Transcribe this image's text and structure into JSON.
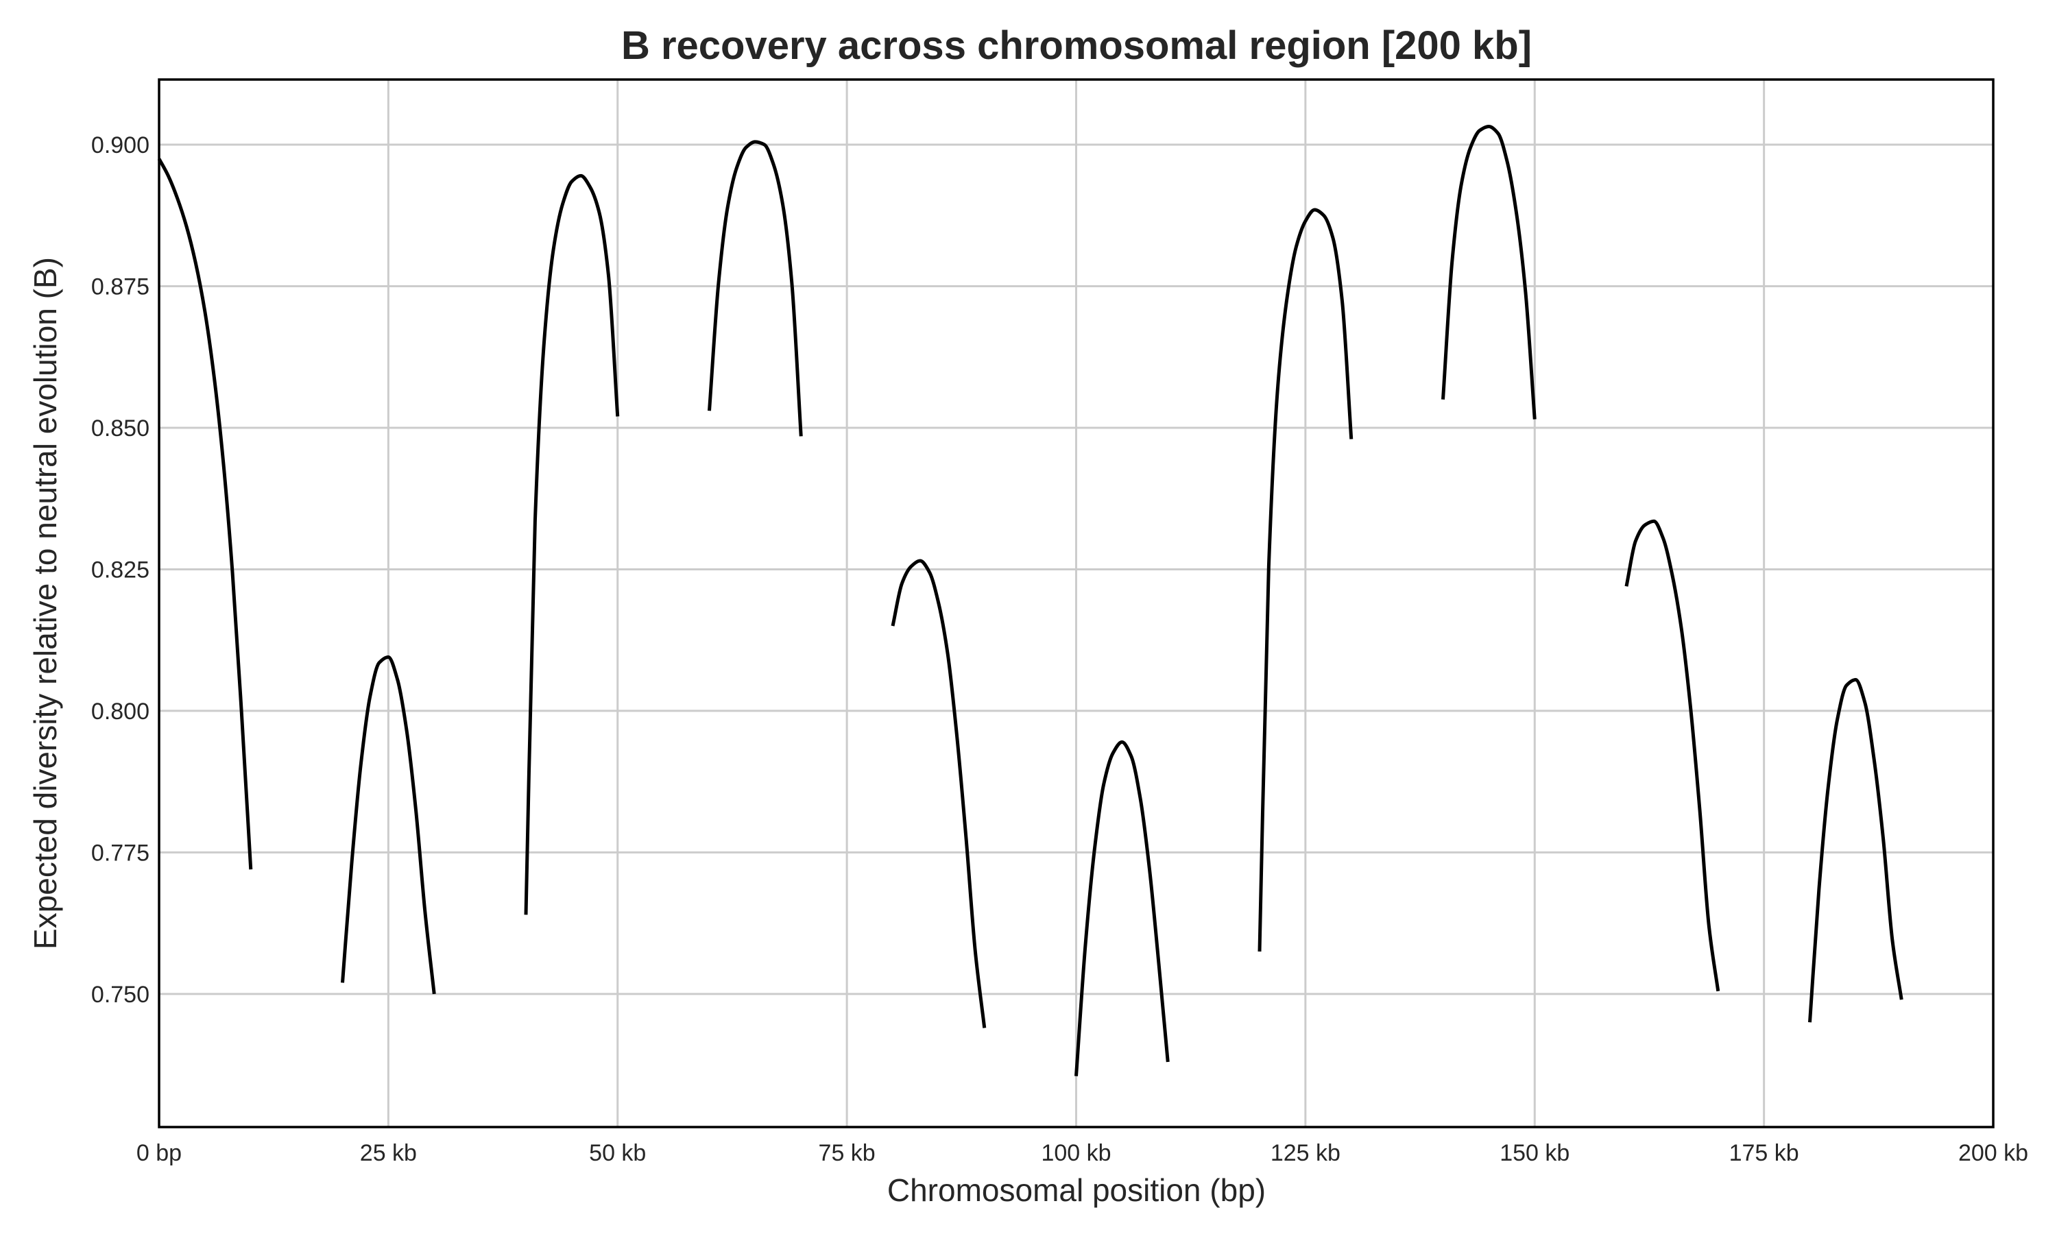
{
  "chart_data": {
    "type": "line",
    "title": "B recovery across chromosomal region [200 kb]",
    "xlabel": "Chromosomal position (bp)",
    "ylabel": "Expected diversity relative to neutral evolution (B)",
    "xlim": [
      0,
      200000
    ],
    "ylim": [
      0.7265,
      0.9115
    ],
    "grid": true,
    "x_ticks": [
      0,
      25000,
      50000,
      75000,
      100000,
      125000,
      150000,
      175000,
      200000
    ],
    "x_tick_labels": [
      "0 bp",
      "25 kb",
      "50 kb",
      "75 kb",
      "100 kb",
      "125 kb",
      "150 kb",
      "175 kb",
      "200 kb"
    ],
    "y_ticks": [
      0.75,
      0.775,
      0.8,
      0.825,
      0.85,
      0.875,
      0.9
    ],
    "y_tick_labels": [
      "0.750",
      "0.775",
      "0.800",
      "0.825",
      "0.850",
      "0.875",
      "0.900"
    ],
    "line_color": "#000000",
    "segments": [
      {
        "x": [
          0,
          1000,
          2000,
          3000,
          4000,
          5000,
          6000,
          7000,
          8000,
          9000,
          10000
        ],
        "y": [
          0.8975,
          0.8945,
          0.8905,
          0.8855,
          0.879,
          0.8705,
          0.859,
          0.844,
          0.8245,
          0.7995,
          0.772
        ]
      },
      {
        "x": [
          20000,
          21000,
          22000,
          23000,
          24000,
          25000,
          26000,
          27000,
          28000,
          29000,
          30000
        ],
        "y": [
          0.752,
          0.773,
          0.7905,
          0.8025,
          0.8085,
          0.8095,
          0.8055,
          0.7965,
          0.7825,
          0.7645,
          0.75
        ]
      },
      {
        "x": [
          40000,
          41000,
          42000,
          43000,
          44000,
          45000,
          46000,
          47000,
          48000,
          49000,
          50000
        ],
        "y": [
          0.764,
          0.8335,
          0.8655,
          0.8815,
          0.8895,
          0.8935,
          0.8945,
          0.8925,
          0.888,
          0.877,
          0.852
        ]
      },
      {
        "x": [
          60000,
          61000,
          62000,
          63000,
          64000,
          65000,
          66000,
          67000,
          68000,
          69000,
          70000
        ],
        "y": [
          0.853,
          0.8755,
          0.889,
          0.896,
          0.8995,
          0.9005,
          0.9,
          0.8965,
          0.8895,
          0.8755,
          0.8485
        ]
      },
      {
        "x": [
          80000,
          81000,
          82000,
          83000,
          84000,
          85000,
          86000,
          87000,
          88000,
          89000,
          90000
        ],
        "y": [
          0.815,
          0.8225,
          0.8255,
          0.8265,
          0.8245,
          0.819,
          0.81,
          0.7955,
          0.7775,
          0.7575,
          0.744
        ]
      },
      {
        "x": [
          100000,
          101000,
          102000,
          103000,
          104000,
          105000,
          106000,
          107000,
          108000,
          109000,
          110000
        ],
        "y": [
          0.7355,
          0.7585,
          0.7755,
          0.787,
          0.7925,
          0.7945,
          0.792,
          0.7845,
          0.772,
          0.7555,
          0.738
        ]
      },
      {
        "x": [
          120000,
          121000,
          122000,
          123000,
          124000,
          125000,
          126000,
          127000,
          128000,
          129000,
          130000
        ],
        "y": [
          0.7575,
          0.8255,
          0.8575,
          0.873,
          0.882,
          0.8865,
          0.8885,
          0.8875,
          0.8835,
          0.8725,
          0.848
        ]
      },
      {
        "x": [
          140000,
          141000,
          142000,
          143000,
          144000,
          145000,
          146000,
          147000,
          148000,
          149000,
          150000
        ],
        "y": [
          0.855,
          0.8795,
          0.893,
          0.8995,
          0.9025,
          0.9032,
          0.902,
          0.897,
          0.888,
          0.874,
          0.8515
        ]
      },
      {
        "x": [
          160000,
          161000,
          162000,
          163000,
          164000,
          165000,
          166000,
          167000,
          168000,
          169000,
          170000
        ],
        "y": [
          0.822,
          0.83,
          0.8328,
          0.8335,
          0.8305,
          0.824,
          0.8145,
          0.8005,
          0.7825,
          0.762,
          0.7505
        ]
      },
      {
        "x": [
          180000,
          181000,
          182000,
          183000,
          184000,
          185000,
          186000,
          187000,
          188000,
          189000,
          190000
        ],
        "y": [
          0.745,
          0.7685,
          0.7865,
          0.7985,
          0.8045,
          0.8055,
          0.8015,
          0.7915,
          0.7775,
          0.7595,
          0.749
        ]
      }
    ]
  }
}
